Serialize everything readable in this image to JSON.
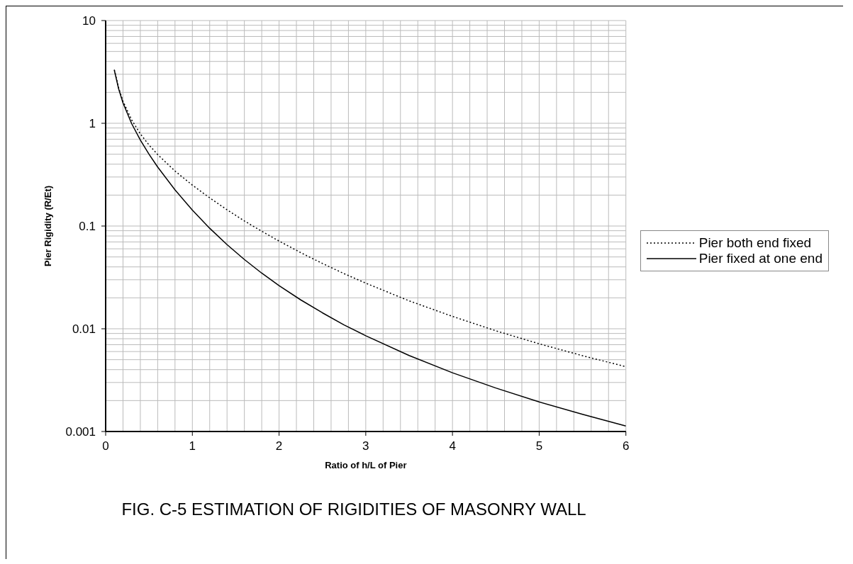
{
  "chart_data": {
    "type": "line",
    "title": "FIG. C-5 ESTIMATION OF RIGIDITIES OF MASONRY WALL",
    "xlabel": "Ratio of h/L of Pier",
    "ylabel": "Pier Rigidity (R/Et)",
    "x": [
      0.1,
      0.15,
      0.2,
      0.3,
      0.4,
      0.5,
      0.6,
      0.8,
      1,
      1.2,
      1.4,
      1.6,
      1.8,
      2,
      2.25,
      2.5,
      2.75,
      3,
      3.5,
      4,
      4.5,
      5,
      5.5,
      6
    ],
    "series": [
      {
        "name": "Pier both end fixed",
        "color": "#000000",
        "line_style": "dotted",
        "values": [
          3.32,
          2.21,
          1.64,
          1.08,
          0.79,
          0.615,
          0.496,
          0.343,
          0.25,
          0.188,
          0.144,
          0.112,
          0.089,
          0.0714,
          0.0551,
          0.0432,
          0.0344,
          0.0278,
          0.0187,
          0.0132,
          0.00956,
          0.00714,
          0.00547,
          0.00427
        ]
      },
      {
        "name": "Pier fixed at one end",
        "color": "#000000",
        "line_style": "solid",
        "values": [
          3.29,
          2.16,
          1.58,
          0.992,
          0.687,
          0.5,
          0.375,
          0.225,
          0.143,
          0.0951,
          0.0659,
          0.0472,
          0.0348,
          0.0263,
          0.0191,
          0.0143,
          0.0109,
          0.00855,
          0.00549,
          0.00373,
          0.00265,
          0.00194,
          0.00147,
          0.00113
        ]
      }
    ],
    "log": "y",
    "xlim": [
      0,
      6
    ],
    "xticks": [
      0,
      {
        "value": 0.2,
        "label": null
      },
      {
        "value": 0.4,
        "label": null
      },
      {
        "value": 0.6,
        "label": null
      },
      {
        "value": 0.8,
        "label": null
      },
      1,
      {
        "value": 1.2,
        "label": null
      },
      {
        "value": 1.4,
        "label": null
      },
      {
        "value": 1.6,
        "label": null
      },
      {
        "value": 1.8,
        "label": null
      },
      2,
      {
        "value": 2.2,
        "label": null
      },
      {
        "value": 2.4,
        "label": null
      },
      {
        "value": 2.6,
        "label": null
      },
      {
        "value": 2.8,
        "label": null
      },
      3,
      {
        "value": 3.2,
        "label": null
      },
      {
        "value": 3.4,
        "label": null
      },
      {
        "value": 3.6,
        "label": null
      },
      {
        "value": 3.8,
        "label": null
      },
      4,
      {
        "value": 4.2,
        "label": null
      },
      {
        "value": 4.4,
        "label": null
      },
      {
        "value": 4.6,
        "label": null
      },
      {
        "value": 4.8,
        "label": null
      },
      5,
      {
        "value": 5.2,
        "label": null
      },
      {
        "value": 5.4,
        "label": null
      },
      {
        "value": 5.6,
        "label": null
      },
      {
        "value": 5.8,
        "label": null
      },
      6
    ],
    "ylim": [
      0.001,
      10
    ],
    "yticks": [
      0.001,
      {
        "value": 0.002,
        "label": null
      },
      {
        "value": 0.003,
        "label": null
      },
      {
        "value": 0.004,
        "label": null
      },
      {
        "value": 0.005,
        "label": null
      },
      {
        "value": 0.006,
        "label": null
      },
      {
        "value": 0.007,
        "label": null
      },
      {
        "value": 0.008,
        "label": null
      },
      {
        "value": 0.009,
        "label": null
      },
      0.01,
      {
        "value": 0.02,
        "label": null
      },
      {
        "value": 0.03,
        "label": null
      },
      {
        "value": 0.04,
        "label": null
      },
      {
        "value": 0.05,
        "label": null
      },
      {
        "value": 0.06,
        "label": null
      },
      {
        "value": 0.07,
        "label": null
      },
      {
        "value": 0.08,
        "label": null
      },
      {
        "value": 0.09,
        "label": null
      },
      0.1,
      {
        "value": 0.2,
        "label": null
      },
      {
        "value": 0.3,
        "label": null
      },
      {
        "value": 0.4,
        "label": null
      },
      {
        "value": 0.5,
        "label": null
      },
      {
        "value": 0.6,
        "label": null
      },
      {
        "value": 0.7,
        "label": null
      },
      {
        "value": 0.8,
        "label": null
      },
      {
        "value": 0.9,
        "label": null
      },
      1,
      {
        "value": 2,
        "label": null
      },
      {
        "value": 3,
        "label": null
      },
      {
        "value": 4,
        "label": null
      },
      {
        "value": 5,
        "label": null
      },
      {
        "value": 6,
        "label": null
      },
      {
        "value": 7,
        "label": null
      },
      {
        "value": 8,
        "label": null
      },
      {
        "value": 9,
        "label": null
      },
      10
    ],
    "grid": true,
    "legend": "right",
    "marker": "none"
  }
}
